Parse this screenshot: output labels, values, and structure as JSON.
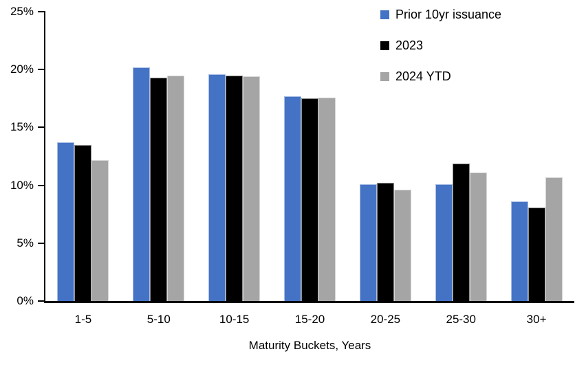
{
  "chart_data": {
    "type": "bar",
    "title": "",
    "xlabel": "Maturity Buckets, Years",
    "ylabel": "",
    "ylim": [
      0,
      25
    ],
    "ytick_values": [
      25,
      20,
      15,
      10,
      5,
      0
    ],
    "ytick_labels": [
      "25%",
      "20%",
      "15%",
      "10%",
      "5%",
      "0%"
    ],
    "categories": [
      "1-5",
      "5-10",
      "10-15",
      "15-20",
      "20-25",
      "25-30",
      "30+"
    ],
    "series": [
      {
        "name": "Prior 10yr issuance",
        "color": "#4472C4",
        "values": [
          13.7,
          20.2,
          19.6,
          17.7,
          10.1,
          10.1,
          8.6
        ]
      },
      {
        "name": "2023",
        "color": "#000000",
        "values": [
          13.5,
          19.3,
          19.5,
          17.5,
          10.2,
          11.9,
          8.1
        ]
      },
      {
        "name": "2024 YTD",
        "color": "#A5A5A5",
        "values": [
          12.2,
          19.5,
          19.4,
          17.6,
          9.6,
          11.1,
          10.7
        ]
      }
    ],
    "legend_position": "top-right",
    "grid": false,
    "axis_color": "#000000",
    "background_color": "#FFFFFF"
  }
}
